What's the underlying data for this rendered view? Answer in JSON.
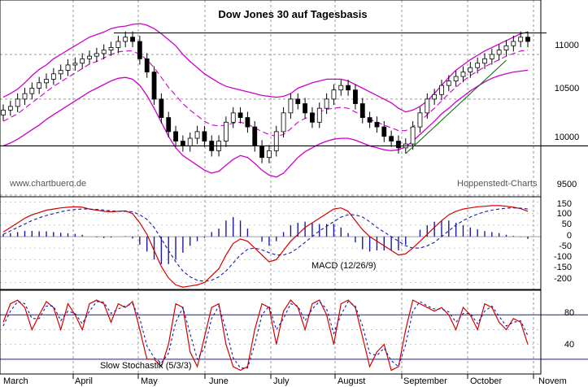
{
  "chart_data": [
    {
      "type": "candlestick",
      "title": "Dow Jones 30 auf Tagesbasis",
      "source_left": "www.chartbuero.de",
      "source_right": "Hoppenstedt-Charts",
      "yticks": [
        "11000",
        "10500",
        "10000",
        "9500"
      ],
      "yscale": "log",
      "ylim": [
        9500,
        11350
      ],
      "series": [
        {
          "name": "close",
          "values": [
            10380,
            10420,
            10500,
            10560,
            10620,
            10680,
            10720,
            10780,
            10820,
            10880,
            10900,
            10950,
            10980,
            11010,
            11050,
            11080,
            11150,
            11200,
            11150,
            10950,
            10800,
            10500,
            10300,
            10150,
            10050,
            10000,
            10080,
            10150,
            10050,
            9950,
            10050,
            10250,
            10350,
            10300,
            10200,
            10000,
            9880,
            9950,
            10150,
            10350,
            10500,
            10450,
            10350,
            10250,
            10400,
            10500,
            10600,
            10650,
            10600,
            10450,
            10300,
            10250,
            10200,
            10100,
            10050,
            9980,
            10020,
            10200,
            10350,
            10500,
            10550,
            10650,
            10700,
            10750,
            10800,
            10850,
            10900,
            10950,
            11000,
            11050,
            11100,
            11150,
            11200,
            11150
          ]
        },
        {
          "name": "upper-band",
          "values": [
            10520,
            10560,
            10610,
            10680,
            10760,
            10830,
            10880,
            10950,
            11000,
            11050,
            11100,
            11150,
            11200,
            11230,
            11260,
            11300,
            11320,
            11330,
            11350,
            11360,
            11340,
            11300,
            11240,
            11170,
            11100,
            11000,
            10920,
            10850,
            10780,
            10730,
            10680,
            10640,
            10620,
            10600,
            10580,
            10560,
            10540,
            10530,
            10520,
            10530,
            10560,
            10620,
            10650,
            10680,
            10700,
            10720,
            10720,
            10720,
            10700,
            10660,
            10620,
            10580,
            10540,
            10500,
            10460,
            10400,
            10360,
            10380,
            10420,
            10480,
            10560,
            10650,
            10740,
            10820,
            10880,
            10940,
            10990,
            11040,
            11080,
            11120,
            11160,
            11200,
            11240,
            11260
          ]
        },
        {
          "name": "lower-band",
          "values": [
            10000,
            10030,
            10070,
            10120,
            10170,
            10220,
            10280,
            10330,
            10380,
            10430,
            10480,
            10530,
            10580,
            10620,
            10660,
            10700,
            10730,
            10740,
            10720,
            10650,
            10540,
            10400,
            10250,
            10100,
            9980,
            9900,
            9850,
            9800,
            9750,
            9720,
            9740,
            9800,
            9860,
            9900,
            9880,
            9820,
            9750,
            9700,
            9680,
            9720,
            9800,
            9880,
            9940,
            9980,
            10020,
            10050,
            10070,
            10080,
            10080,
            10060,
            10030,
            10000,
            9980,
            9960,
            9950,
            9960,
            9990,
            10050,
            10120,
            10190,
            10260,
            10340,
            10400,
            10470,
            10530,
            10590,
            10640,
            10690,
            10730,
            10760,
            10780,
            10800,
            10810,
            10820
          ]
        },
        {
          "name": "average",
          "values": [
            10260,
            10300,
            10340,
            10400,
            10460,
            10520,
            10580,
            10640,
            10690,
            10740,
            10790,
            10840,
            10890,
            10920,
            10960,
            11000,
            11030,
            11040,
            11040,
            11000,
            10940,
            10850,
            10740,
            10630,
            10540,
            10450,
            10380,
            10320,
            10260,
            10220,
            10210,
            10220,
            10240,
            10250,
            10230,
            10190,
            10150,
            10120,
            10100,
            10120,
            10180,
            10250,
            10290,
            10320,
            10360,
            10390,
            10400,
            10410,
            10400,
            10360,
            10320,
            10280,
            10250,
            10220,
            10190,
            10160,
            10160,
            10200,
            10260,
            10330,
            10400,
            10480,
            10560,
            10630,
            10700,
            10760,
            10810,
            10860,
            10900,
            10940,
            10980,
            11010,
            11040,
            11050
          ]
        }
      ],
      "resistance_line": 11250,
      "support_line": 10000
    },
    {
      "type": "line",
      "title": "MACD (12/26/9)",
      "yticks": [
        "150",
        "100",
        "50",
        "0",
        "-50",
        "-100",
        "-150",
        "-200"
      ],
      "ylim": [
        -230,
        170
      ],
      "series": [
        {
          "name": "macd",
          "values": [
            20,
            40,
            60,
            80,
            95,
            105,
            115,
            120,
            125,
            128,
            130,
            128,
            120,
            115,
            110,
            108,
            110,
            112,
            100,
            60,
            10,
            -60,
            -130,
            -180,
            -210,
            -220,
            -215,
            -210,
            -200,
            -170,
            -140,
            -80,
            -30,
            -10,
            -20,
            -50,
            -80,
            -110,
            -100,
            -60,
            -20,
            10,
            40,
            60,
            80,
            100,
            120,
            125,
            110,
            70,
            30,
            0,
            -20,
            -40,
            -60,
            -80,
            -75,
            -50,
            -20,
            10,
            40,
            70,
            95,
            110,
            120,
            125,
            130,
            132,
            135,
            135,
            132,
            128,
            122,
            110
          ]
        },
        {
          "name": "signal",
          "values": [
            10,
            25,
            40,
            55,
            70,
            82,
            92,
            100,
            108,
            114,
            118,
            120,
            120,
            118,
            116,
            112,
            110,
            110,
            108,
            95,
            75,
            40,
            -10,
            -60,
            -110,
            -150,
            -175,
            -190,
            -195,
            -190,
            -175,
            -150,
            -115,
            -80,
            -55,
            -50,
            -58,
            -70,
            -80,
            -80,
            -70,
            -50,
            -25,
            0,
            25,
            45,
            65,
            85,
            95,
            95,
            85,
            65,
            40,
            20,
            0,
            -20,
            -40,
            -50,
            -50,
            -40,
            -25,
            0,
            25,
            50,
            70,
            85,
            98,
            108,
            115,
            120,
            124,
            125,
            124,
            120
          ]
        },
        {
          "name": "histogram",
          "values": [
            10,
            15,
            20,
            25,
            25,
            23,
            23,
            20,
            17,
            14,
            12,
            8,
            0,
            -3,
            -6,
            -4,
            0,
            2,
            -8,
            -35,
            -65,
            -100,
            -120,
            -120,
            -100,
            -70,
            -40,
            -20,
            -5,
            20,
            35,
            70,
            85,
            70,
            35,
            0,
            -22,
            -40,
            -20,
            20,
            50,
            60,
            65,
            60,
            55,
            55,
            55,
            40,
            15,
            -25,
            -55,
            -65,
            -60,
            -60,
            -60,
            -60,
            -35,
            0,
            30,
            50,
            65,
            70,
            70,
            60,
            50,
            40,
            32,
            24,
            20,
            15,
            8,
            3,
            -2,
            -10
          ]
        }
      ]
    },
    {
      "type": "line",
      "title": "Slow Stochastik (5/3/3)",
      "yticks": [
        "80",
        "40"
      ],
      "ylim": [
        0,
        110
      ],
      "lines": [
        80,
        20
      ],
      "series": [
        {
          "name": "k",
          "values": [
            70,
            95,
            100,
            90,
            60,
            80,
            98,
            90,
            60,
            95,
            80,
            60,
            95,
            100,
            95,
            70,
            95,
            90,
            98,
            60,
            20,
            20,
            10,
            40,
            95,
            90,
            30,
            10,
            50,
            90,
            95,
            40,
            10,
            5,
            10,
            60,
            95,
            90,
            40,
            85,
            100,
            90,
            60,
            95,
            100,
            80,
            40,
            95,
            100,
            90,
            50,
            10,
            30,
            40,
            5,
            10,
            60,
            100,
            95,
            90,
            85,
            90,
            80,
            60,
            90,
            80,
            60,
            95,
            90,
            70,
            60,
            75,
            70,
            40
          ]
        },
        {
          "name": "d",
          "values": [
            65,
            85,
            98,
            95,
            75,
            75,
            92,
            92,
            72,
            85,
            82,
            68,
            85,
            98,
            97,
            82,
            88,
            92,
            95,
            75,
            38,
            22,
            15,
            28,
            70,
            90,
            55,
            20,
            35,
            75,
            92,
            60,
            22,
            8,
            8,
            40,
            80,
            92,
            60,
            75,
            95,
            92,
            72,
            88,
            98,
            88,
            55,
            80,
            98,
            92,
            65,
            28,
            25,
            35,
            18,
            10,
            40,
            85,
            98,
            92,
            88,
            88,
            84,
            70,
            82,
            82,
            68,
            85,
            92,
            78,
            65,
            70,
            72,
            52
          ]
        }
      ]
    }
  ],
  "x_axis": {
    "months": [
      "March",
      "April",
      "May",
      "June",
      "July",
      "August",
      "September",
      "October",
      "Novem"
    ]
  }
}
